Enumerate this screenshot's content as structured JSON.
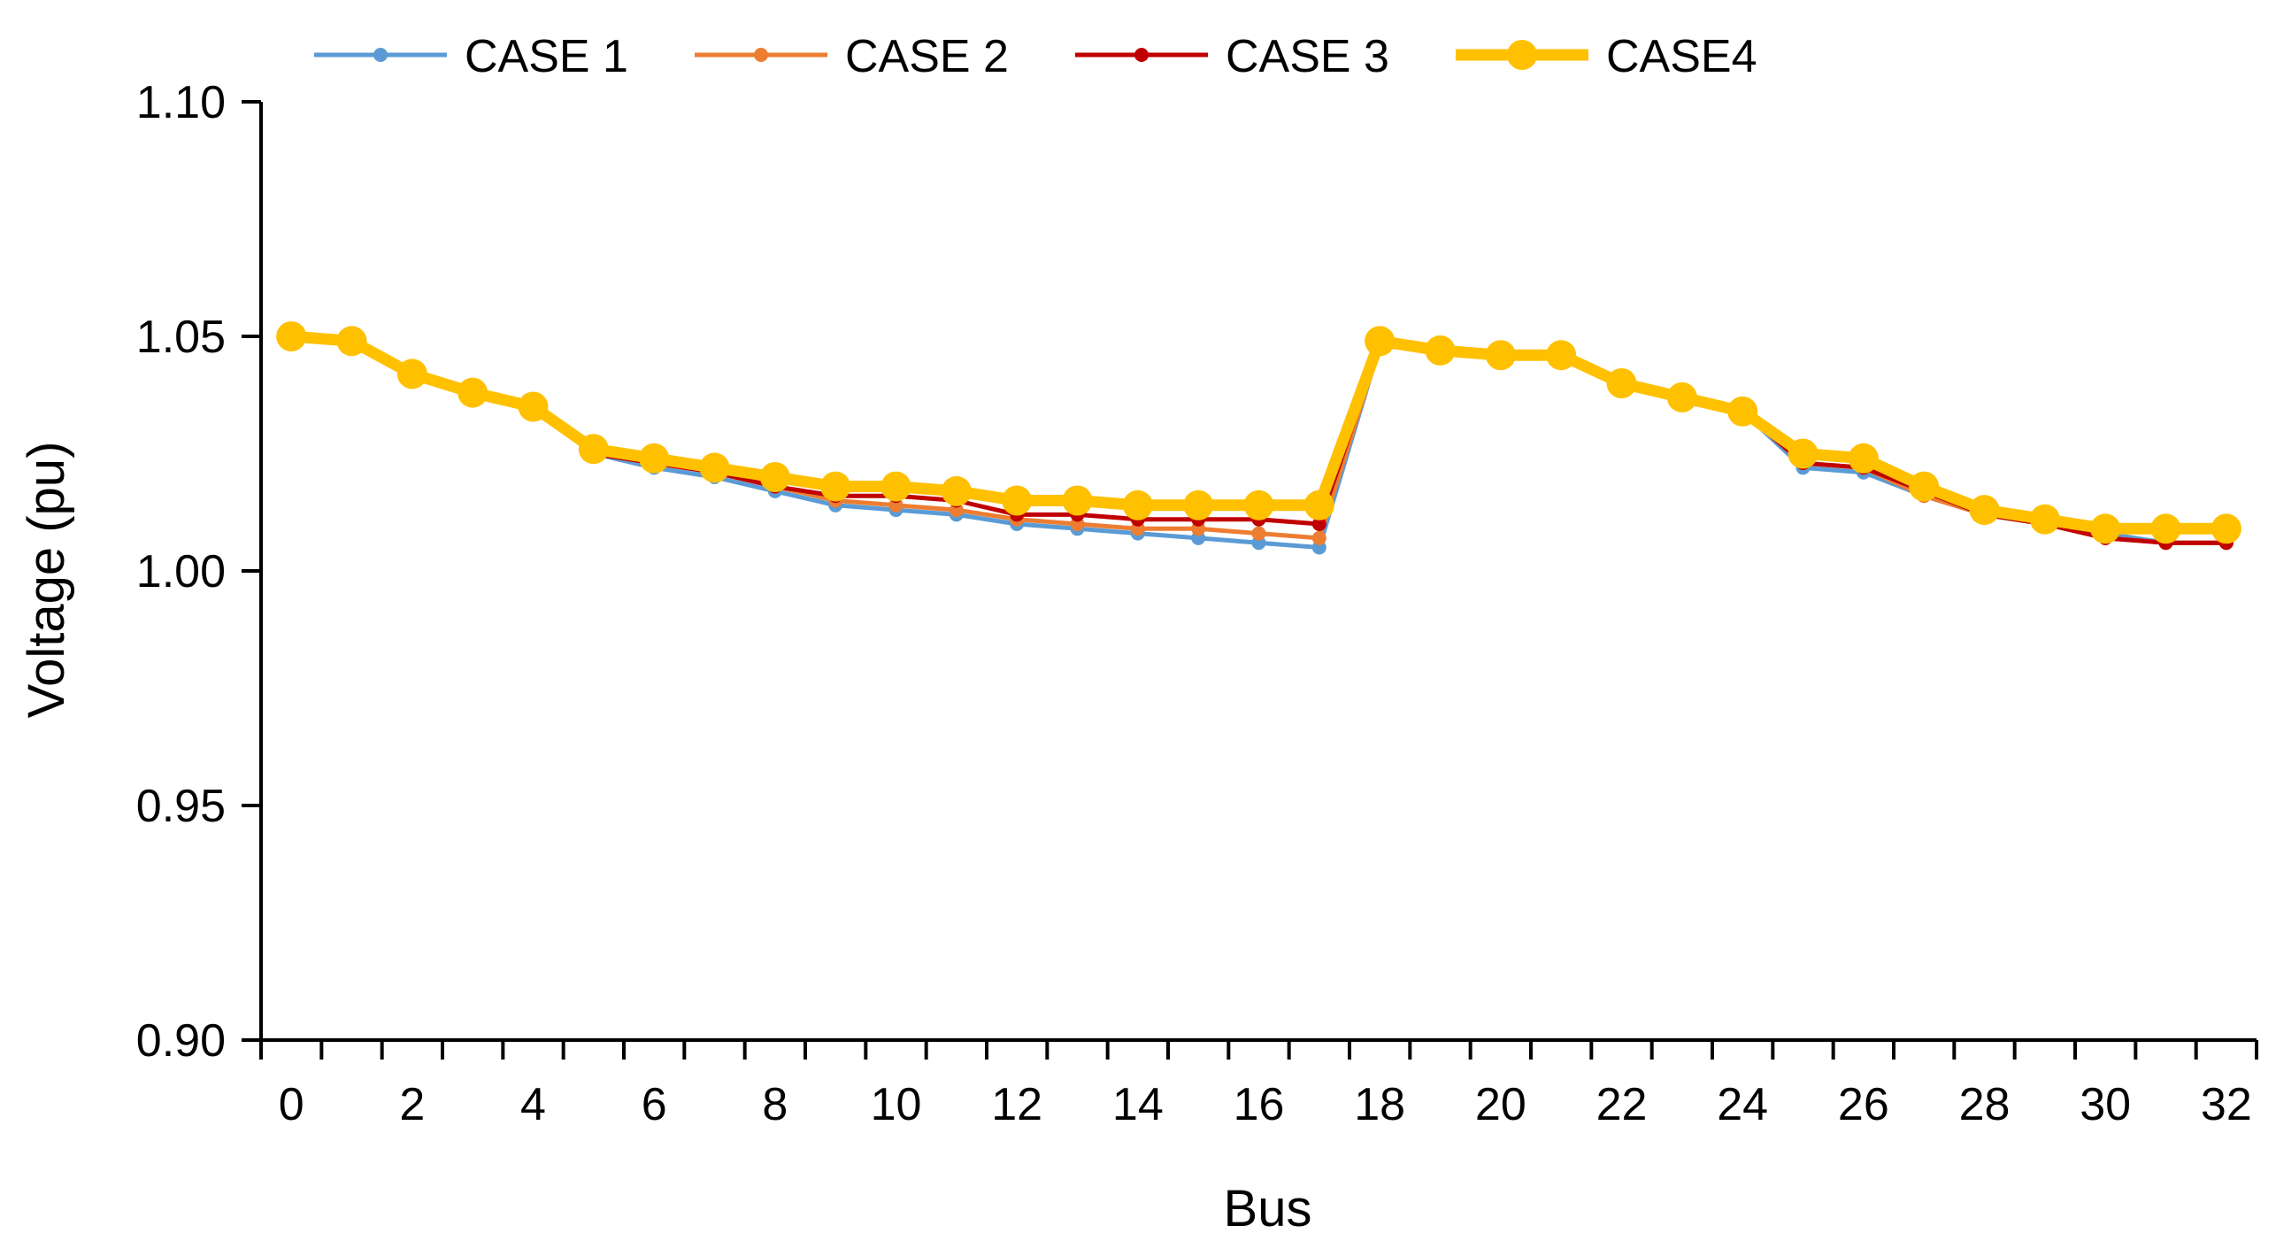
{
  "chart_data": {
    "type": "line",
    "title": "",
    "xlabel": "Bus",
    "ylabel": "Voltage (pu)",
    "xlim": [
      -0.5,
      32.5
    ],
    "ylim": [
      0.9,
      1.1
    ],
    "x_ticks": [
      0,
      2,
      4,
      6,
      8,
      10,
      12,
      14,
      16,
      18,
      20,
      22,
      24,
      26,
      28,
      30,
      32
    ],
    "y_ticks": [
      "0.90",
      "0.95",
      "1.00",
      "1.05",
      "1.10"
    ],
    "y_tick_values": [
      0.9,
      0.95,
      1.0,
      1.05,
      1.1
    ],
    "legend_position": "top",
    "grid": false,
    "x": [
      0,
      1,
      2,
      3,
      4,
      5,
      6,
      7,
      8,
      9,
      10,
      11,
      12,
      13,
      14,
      15,
      16,
      17,
      18,
      19,
      20,
      21,
      22,
      23,
      24,
      25,
      26,
      27,
      28,
      29,
      30,
      31,
      32
    ],
    "series": [
      {
        "name": "CASE 1",
        "color": "#5B9BD5",
        "values": [
          1.05,
          1.049,
          1.042,
          1.038,
          1.035,
          1.025,
          1.022,
          1.02,
          1.017,
          1.014,
          1.013,
          1.012,
          1.01,
          1.009,
          1.008,
          1.007,
          1.006,
          1.005,
          1.048,
          1.047,
          1.046,
          1.046,
          1.04,
          1.036,
          1.034,
          1.022,
          1.021,
          1.016,
          1.012,
          1.01,
          1.008,
          1.006,
          1.006
        ]
      },
      {
        "name": "CASE 2",
        "color": "#ED7D31",
        "values": [
          1.05,
          1.049,
          1.042,
          1.038,
          1.035,
          1.025,
          1.023,
          1.021,
          1.018,
          1.015,
          1.014,
          1.013,
          1.011,
          1.01,
          1.009,
          1.009,
          1.008,
          1.007,
          1.048,
          1.047,
          1.046,
          1.046,
          1.04,
          1.036,
          1.034,
          1.023,
          1.022,
          1.016,
          1.012,
          1.01,
          1.007,
          1.006,
          1.006
        ]
      },
      {
        "name": "CASE 3",
        "color": "#C00000",
        "values": [
          1.05,
          1.049,
          1.042,
          1.038,
          1.035,
          1.025,
          1.023,
          1.021,
          1.018,
          1.016,
          1.016,
          1.015,
          1.012,
          1.012,
          1.011,
          1.011,
          1.011,
          1.01,
          1.048,
          1.047,
          1.046,
          1.046,
          1.04,
          1.036,
          1.034,
          1.023,
          1.022,
          1.017,
          1.012,
          1.01,
          1.007,
          1.006,
          1.006
        ]
      },
      {
        "name": "CASE4",
        "color": "#FFC000",
        "values": [
          1.05,
          1.049,
          1.042,
          1.038,
          1.035,
          1.026,
          1.024,
          1.022,
          1.02,
          1.018,
          1.018,
          1.017,
          1.015,
          1.015,
          1.014,
          1.014,
          1.014,
          1.014,
          1.049,
          1.047,
          1.046,
          1.046,
          1.04,
          1.037,
          1.034,
          1.025,
          1.024,
          1.018,
          1.013,
          1.011,
          1.009,
          1.009,
          1.009
        ]
      }
    ]
  }
}
